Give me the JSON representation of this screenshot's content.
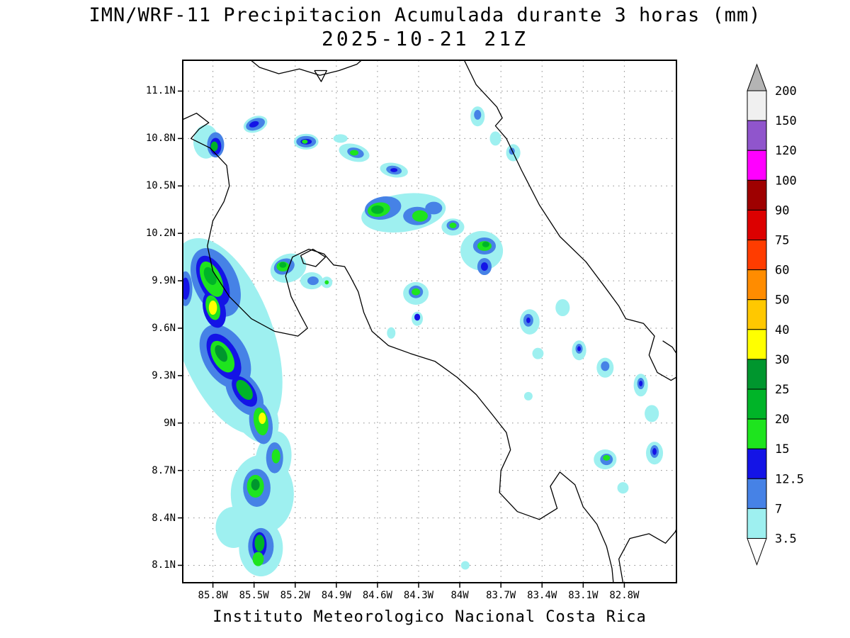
{
  "header": {
    "title": "IMN/WRF-11 Precipitacion Acumulada durante 3 horas (mm)",
    "datetime": "2025-10-21 21Z"
  },
  "footer": {
    "credit": "Instituto Meteorologico Nacional Costa Rica"
  },
  "axes": {
    "lat_ticks": [
      "11.1N",
      "10.8N",
      "10.5N",
      "10.2N",
      "9.9N",
      "9.6N",
      "9.3N",
      "9N",
      "8.7N",
      "8.4N",
      "8.1N"
    ],
    "lat_values": [
      11.1,
      10.8,
      10.5,
      10.2,
      9.9,
      9.6,
      9.3,
      9.0,
      8.7,
      8.4,
      8.1
    ],
    "lon_ticks": [
      "85.8W",
      "85.5W",
      "85.2W",
      "84.9W",
      "84.6W",
      "84.3W",
      "84W",
      "83.7W",
      "83.4W",
      "83.1W",
      "82.8W"
    ],
    "lon_values": [
      85.8,
      85.5,
      85.2,
      84.9,
      84.6,
      84.3,
      84.0,
      83.7,
      83.4,
      83.1,
      82.8
    ]
  },
  "chart_data": {
    "type": "heatmap",
    "title": "IMN/WRF-11 Precipitacion Acumulada durante 3 horas (mm)",
    "subtitle": "2025-10-21 21Z",
    "units": "mm",
    "region": "Costa Rica",
    "domain": {
      "lon_west": 86.02,
      "lon_east": 82.42,
      "lat_south": 7.99,
      "lat_north": 11.295
    },
    "levels": [
      3.5,
      7,
      12.5,
      15,
      20,
      25,
      30,
      40,
      50,
      60,
      75,
      90,
      100,
      120,
      150,
      200
    ],
    "level_colors": {
      "3.5": "#9ef0f0",
      "7": "#4682e6",
      "12.5": "#1414e6",
      "15": "#1ee41e",
      "20": "#00b428",
      "25": "#00962e",
      "30": "#ffff00",
      "40": "#ffc800",
      "50": "#ff8c00",
      "60": "#ff3c00",
      "75": "#dc0000",
      "90": "#9e0000",
      "100": "#ff00ff",
      "120": "#9055cc",
      "150": "#f0f0f0",
      "200": "#b4b4b4"
    },
    "colorbar": {
      "labels": [
        "200",
        "150",
        "120",
        "100",
        "90",
        "75",
        "60",
        "50",
        "40",
        "30",
        "25",
        "20",
        "15",
        "12.5",
        "7",
        "3.5"
      ],
      "arrow_top_color": "#b4b4b4",
      "arrow_bottom_color": "#ffffff"
    },
    "grid_color": "#8c8c8c",
    "coast_color": "#000000",
    "precip_cells": [
      [
        85.71,
        9.55,
        3.5,
        0.35,
        0.65,
        -20
      ],
      [
        85.8,
        9.85,
        3.5,
        0.18,
        0.3,
        -20
      ],
      [
        85.52,
        9.1,
        3.5,
        0.16,
        0.25,
        -30
      ],
      [
        86.0,
        9.85,
        7,
        0.05,
        0.11,
        0
      ],
      [
        86.0,
        9.85,
        12.5,
        0.03,
        0.07,
        0
      ],
      [
        85.78,
        9.89,
        7,
        0.16,
        0.23,
        -25
      ],
      [
        85.8,
        9.9,
        12.5,
        0.1,
        0.17,
        -25
      ],
      [
        85.81,
        9.91,
        15,
        0.07,
        0.12,
        -25
      ],
      [
        85.82,
        9.93,
        20,
        0.04,
        0.06,
        -25
      ],
      [
        85.79,
        9.72,
        12.5,
        0.08,
        0.12,
        -15
      ],
      [
        85.8,
        9.73,
        15,
        0.05,
        0.08,
        -15
      ],
      [
        85.8,
        9.73,
        30,
        0.03,
        0.045,
        0
      ],
      [
        85.71,
        9.42,
        7,
        0.16,
        0.22,
        -30
      ],
      [
        85.72,
        9.42,
        12.5,
        0.1,
        0.16,
        -30
      ],
      [
        85.73,
        9.42,
        15,
        0.07,
        0.11,
        -30
      ],
      [
        85.74,
        9.44,
        25,
        0.036,
        0.058,
        -30
      ],
      [
        85.57,
        9.19,
        7,
        0.11,
        0.16,
        -35
      ],
      [
        85.57,
        9.2,
        12.5,
        0.07,
        0.11,
        -35
      ],
      [
        85.57,
        9.21,
        20,
        0.046,
        0.072,
        -35
      ],
      [
        85.45,
        9.0,
        7,
        0.083,
        0.134,
        -10
      ],
      [
        85.45,
        9.01,
        15,
        0.052,
        0.089,
        -10
      ],
      [
        85.44,
        9.03,
        30,
        0.026,
        0.036,
        0
      ],
      [
        85.36,
        8.77,
        3.5,
        0.13,
        0.18,
        10
      ],
      [
        85.35,
        8.78,
        7,
        0.062,
        0.098,
        0
      ],
      [
        85.34,
        8.79,
        15,
        0.031,
        0.045,
        0
      ],
      [
        85.44,
        8.55,
        3.5,
        0.23,
        0.25,
        0
      ],
      [
        85.48,
        8.59,
        7,
        0.1,
        0.12,
        0
      ],
      [
        85.49,
        8.6,
        15,
        0.062,
        0.072,
        0
      ],
      [
        85.49,
        8.61,
        25,
        0.031,
        0.036,
        0
      ],
      [
        85.65,
        8.34,
        3.5,
        0.13,
        0.13,
        0
      ],
      [
        85.45,
        8.21,
        3.5,
        0.16,
        0.18,
        0
      ],
      [
        85.45,
        8.22,
        7,
        0.093,
        0.116,
        0
      ],
      [
        85.46,
        8.23,
        12.5,
        0.052,
        0.08,
        0
      ],
      [
        85.46,
        8.24,
        20,
        0.036,
        0.054,
        0
      ],
      [
        85.47,
        8.14,
        15,
        0.041,
        0.045,
        0
      ],
      [
        85.85,
        10.78,
        3.5,
        0.093,
        0.107,
        0
      ],
      [
        85.49,
        10.89,
        3.5,
        0.09,
        0.05,
        -20
      ],
      [
        85.49,
        10.89,
        7,
        0.072,
        0.036,
        -20
      ],
      [
        85.5,
        10.89,
        12.5,
        0.036,
        0.018,
        -20
      ],
      [
        85.78,
        10.76,
        7,
        0.062,
        0.08,
        0
      ],
      [
        85.78,
        10.75,
        12.5,
        0.041,
        0.054,
        0
      ],
      [
        85.79,
        10.75,
        20,
        0.026,
        0.031,
        0
      ],
      [
        85.12,
        10.78,
        3.5,
        0.09,
        0.05,
        0
      ],
      [
        85.12,
        10.78,
        7,
        0.072,
        0.036,
        0
      ],
      [
        85.12,
        10.78,
        12.5,
        0.041,
        0.018,
        0
      ],
      [
        85.13,
        10.78,
        15,
        0.021,
        0.013,
        0
      ],
      [
        84.87,
        10.8,
        3.5,
        0.052,
        0.027,
        0
      ],
      [
        84.77,
        10.71,
        3.5,
        0.114,
        0.054,
        15
      ],
      [
        84.76,
        10.71,
        7,
        0.062,
        0.031,
        15
      ],
      [
        84.77,
        10.71,
        15,
        0.031,
        0.018,
        0
      ],
      [
        84.48,
        10.6,
        3.5,
        0.103,
        0.045,
        10
      ],
      [
        84.48,
        10.6,
        7,
        0.057,
        0.027,
        10
      ],
      [
        84.48,
        10.6,
        12.5,
        0.026,
        0.013,
        0
      ],
      [
        83.87,
        10.94,
        3.5,
        0.052,
        0.063,
        0
      ],
      [
        83.87,
        10.95,
        7,
        0.026,
        0.031,
        0
      ],
      [
        83.74,
        10.8,
        3.5,
        0.041,
        0.045,
        0
      ],
      [
        83.61,
        10.71,
        3.5,
        0.052,
        0.054,
        0
      ],
      [
        83.62,
        10.72,
        7,
        0.021,
        0.022,
        0
      ],
      [
        84.41,
        10.33,
        3.5,
        0.31,
        0.12,
        -8
      ],
      [
        84.56,
        10.36,
        7,
        0.134,
        0.072,
        -10
      ],
      [
        84.59,
        10.35,
        15,
        0.083,
        0.045,
        -10
      ],
      [
        84.6,
        10.35,
        20,
        0.046,
        0.027,
        0
      ],
      [
        84.31,
        10.31,
        7,
        0.103,
        0.058,
        0
      ],
      [
        84.29,
        10.31,
        15,
        0.057,
        0.036,
        0
      ],
      [
        84.19,
        10.36,
        7,
        0.062,
        0.04,
        0
      ],
      [
        84.05,
        10.24,
        3.5,
        0.083,
        0.054,
        0
      ],
      [
        84.05,
        10.25,
        7,
        0.046,
        0.031,
        0
      ],
      [
        84.05,
        10.25,
        15,
        0.026,
        0.018,
        0
      ],
      [
        83.84,
        10.09,
        3.5,
        0.155,
        0.125,
        0
      ],
      [
        83.82,
        10.12,
        7,
        0.083,
        0.054,
        0
      ],
      [
        83.82,
        10.12,
        15,
        0.052,
        0.031,
        0
      ],
      [
        83.81,
        10.13,
        20,
        0.026,
        0.018,
        0
      ],
      [
        83.82,
        9.99,
        7,
        0.052,
        0.054,
        0
      ],
      [
        83.82,
        9.99,
        12.5,
        0.026,
        0.027,
        0
      ],
      [
        85.25,
        9.98,
        3.5,
        0.134,
        0.089,
        -20
      ],
      [
        85.28,
        9.99,
        7,
        0.077,
        0.049,
        -20
      ],
      [
        85.29,
        9.99,
        15,
        0.046,
        0.031,
        0
      ],
      [
        85.29,
        10.0,
        20,
        0.026,
        0.018,
        0
      ],
      [
        85.08,
        9.9,
        3.5,
        0.083,
        0.054,
        0
      ],
      [
        85.07,
        9.9,
        7,
        0.041,
        0.027,
        0
      ],
      [
        84.97,
        9.89,
        3.5,
        0.041,
        0.036,
        0
      ],
      [
        84.97,
        9.89,
        15,
        0.015,
        0.013,
        0
      ],
      [
        84.32,
        9.82,
        3.5,
        0.093,
        0.072,
        0
      ],
      [
        84.32,
        9.83,
        7,
        0.052,
        0.04,
        0
      ],
      [
        84.32,
        9.83,
        15,
        0.031,
        0.022,
        0
      ],
      [
        84.31,
        9.66,
        3.5,
        0.041,
        0.045,
        0
      ],
      [
        84.31,
        9.67,
        12.5,
        0.021,
        0.022,
        0
      ],
      [
        84.5,
        9.57,
        3.5,
        0.031,
        0.036,
        0
      ],
      [
        83.49,
        9.64,
        3.5,
        0.072,
        0.08,
        0
      ],
      [
        83.5,
        9.65,
        7,
        0.036,
        0.04,
        0
      ],
      [
        83.5,
        9.65,
        12.5,
        0.015,
        0.018,
        0
      ],
      [
        83.25,
        9.73,
        3.5,
        0.052,
        0.054,
        0
      ],
      [
        83.13,
        9.46,
        3.5,
        0.052,
        0.063,
        0
      ],
      [
        83.13,
        9.47,
        7,
        0.026,
        0.031,
        0
      ],
      [
        83.13,
        9.47,
        12.5,
        0.013,
        0.016,
        0
      ],
      [
        83.43,
        9.44,
        3.5,
        0.041,
        0.036,
        0
      ],
      [
        83.5,
        9.17,
        3.5,
        0.031,
        0.027,
        0
      ],
      [
        82.94,
        9.35,
        3.5,
        0.062,
        0.063,
        0
      ],
      [
        82.94,
        9.36,
        7,
        0.031,
        0.031,
        0
      ],
      [
        82.68,
        9.24,
        3.5,
        0.052,
        0.072,
        0
      ],
      [
        82.68,
        9.25,
        7,
        0.026,
        0.036,
        0
      ],
      [
        82.68,
        9.25,
        12.5,
        0.013,
        0.018,
        0
      ],
      [
        82.6,
        9.06,
        3.5,
        0.052,
        0.054,
        0
      ],
      [
        82.58,
        8.81,
        3.5,
        0.062,
        0.072,
        0
      ],
      [
        82.58,
        8.82,
        7,
        0.031,
        0.04,
        0
      ],
      [
        82.58,
        8.82,
        12.5,
        0.015,
        0.022,
        0
      ],
      [
        82.94,
        8.77,
        3.5,
        0.083,
        0.063,
        0
      ],
      [
        82.93,
        8.77,
        7,
        0.046,
        0.036,
        0
      ],
      [
        82.93,
        8.78,
        15,
        0.026,
        0.018,
        0
      ],
      [
        82.81,
        8.59,
        3.5,
        0.041,
        0.036,
        0
      ],
      [
        83.96,
        8.1,
        3.5,
        0.031,
        0.027,
        0
      ]
    ],
    "coastlines": [
      [
        [
          86.02,
          10.92
        ],
        [
          85.92,
          10.96
        ],
        [
          85.83,
          10.9
        ],
        [
          85.9,
          10.86
        ],
        [
          85.96,
          10.8
        ],
        [
          85.82,
          10.74
        ],
        [
          85.7,
          10.63
        ],
        [
          85.68,
          10.5
        ],
        [
          85.72,
          10.4
        ],
        [
          85.8,
          10.28
        ],
        [
          85.84,
          10.12
        ],
        [
          85.8,
          9.96
        ],
        [
          85.68,
          9.8
        ],
        [
          85.52,
          9.66
        ],
        [
          85.35,
          9.58
        ],
        [
          85.18,
          9.55
        ],
        [
          85.11,
          9.6
        ],
        [
          85.16,
          9.68
        ],
        [
          85.23,
          9.8
        ],
        [
          85.27,
          9.93
        ],
        [
          85.22,
          10.05
        ],
        [
          85.1,
          10.1
        ],
        [
          84.99,
          10.07
        ],
        [
          84.92,
          10.0
        ],
        [
          84.84,
          9.99
        ],
        [
          84.8,
          9.93
        ],
        [
          84.74,
          9.83
        ],
        [
          84.7,
          9.7
        ],
        [
          84.64,
          9.58
        ],
        [
          84.52,
          9.49
        ],
        [
          84.36,
          9.44
        ],
        [
          84.18,
          9.39
        ],
        [
          84.02,
          9.29
        ],
        [
          83.88,
          9.18
        ],
        [
          83.76,
          9.05
        ],
        [
          83.66,
          8.94
        ],
        [
          83.63,
          8.83
        ],
        [
          83.7,
          8.7
        ],
        [
          83.71,
          8.56
        ],
        [
          83.58,
          8.44
        ],
        [
          83.42,
          8.39
        ],
        [
          83.29,
          8.46
        ],
        [
          83.34,
          8.6
        ],
        [
          83.27,
          8.69
        ],
        [
          83.16,
          8.61
        ],
        [
          83.1,
          8.47
        ],
        [
          83.0,
          8.36
        ],
        [
          82.93,
          8.22
        ],
        [
          82.89,
          8.08
        ],
        [
          82.88,
          7.99
        ]
      ],
      [
        [
          85.53,
          11.3
        ],
        [
          85.46,
          11.25
        ],
        [
          85.32,
          11.21
        ],
        [
          85.17,
          11.24
        ],
        [
          85.02,
          11.2
        ],
        [
          84.88,
          11.23
        ],
        [
          84.75,
          11.27
        ],
        [
          84.71,
          11.3
        ]
      ],
      [
        [
          85.06,
          11.23
        ],
        [
          85.01,
          11.16
        ],
        [
          84.97,
          11.23
        ],
        [
          85.06,
          11.23
        ]
      ],
      [
        [
          83.97,
          11.3
        ],
        [
          83.88,
          11.14
        ],
        [
          83.73,
          11.0
        ],
        [
          83.69,
          10.93
        ],
        [
          83.74,
          10.88
        ],
        [
          83.66,
          10.8
        ],
        [
          83.55,
          10.6
        ],
        [
          83.42,
          10.38
        ],
        [
          83.27,
          10.18
        ],
        [
          83.08,
          10.02
        ],
        [
          82.95,
          9.87
        ],
        [
          82.84,
          9.74
        ],
        [
          82.79,
          9.66
        ],
        [
          82.66,
          9.63
        ],
        [
          82.58,
          9.55
        ],
        [
          82.62,
          9.43
        ],
        [
          82.56,
          9.32
        ],
        [
          82.46,
          9.27
        ],
        [
          82.42,
          9.29
        ]
      ],
      [
        [
          82.52,
          9.52
        ],
        [
          82.45,
          9.48
        ],
        [
          82.42,
          9.44
        ]
      ],
      [
        [
          82.81,
          7.99
        ],
        [
          82.84,
          8.14
        ],
        [
          82.76,
          8.27
        ],
        [
          82.62,
          8.3
        ],
        [
          82.5,
          8.24
        ],
        [
          82.43,
          8.31
        ],
        [
          82.42,
          8.33
        ]
      ],
      [
        [
          85.16,
          10.06
        ],
        [
          85.07,
          10.1
        ],
        [
          84.98,
          10.05
        ],
        [
          85.05,
          9.99
        ],
        [
          85.14,
          10.01
        ],
        [
          85.16,
          10.06
        ]
      ]
    ]
  }
}
